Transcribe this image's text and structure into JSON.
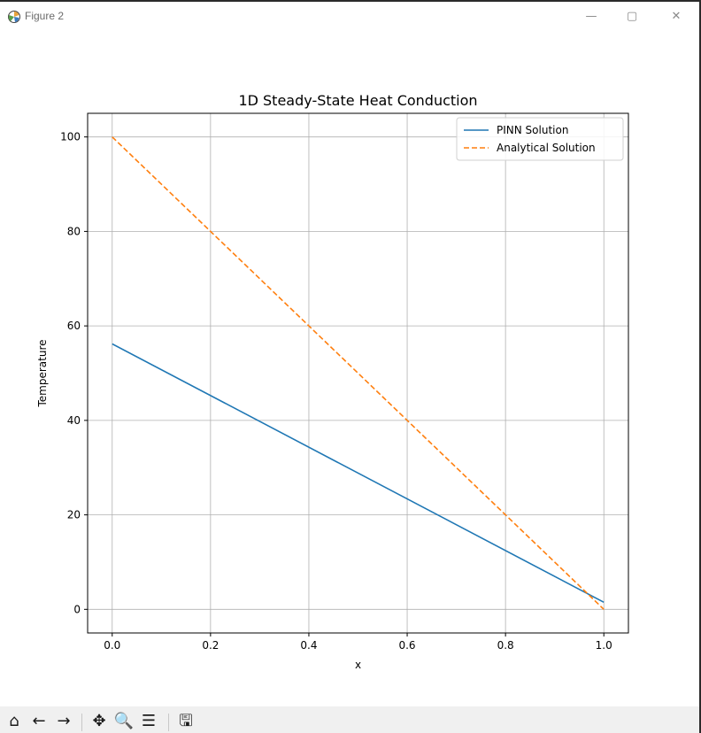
{
  "window": {
    "title": "Figure 2",
    "icon": "matplotlib-icon",
    "controls": {
      "minimize": "—",
      "maximize": "▢",
      "close": "✕"
    }
  },
  "toolbar": {
    "buttons": [
      {
        "icon": "home-icon",
        "glyph": "⌂"
      },
      {
        "icon": "back-arrow-icon",
        "glyph": "←"
      },
      {
        "icon": "forward-arrow-icon",
        "glyph": "→"
      },
      {
        "icon": "pan-icon",
        "glyph": "✥"
      },
      {
        "icon": "zoom-icon",
        "glyph": "🔍"
      },
      {
        "icon": "configure-subplots-icon",
        "glyph": "☰"
      },
      {
        "icon": "save-icon",
        "glyph": "🖫"
      }
    ]
  },
  "chart_data": {
    "type": "line",
    "title": "1D Steady-State Heat Conduction",
    "xlabel": "x",
    "ylabel": "Temperature",
    "xlim": [
      -0.05,
      1.05
    ],
    "ylim": [
      -5,
      105
    ],
    "xticks": [
      0.0,
      0.2,
      0.4,
      0.6,
      0.8,
      1.0
    ],
    "xtick_labels": [
      "0.0",
      "0.2",
      "0.4",
      "0.6",
      "0.8",
      "1.0"
    ],
    "yticks": [
      0,
      20,
      40,
      60,
      80,
      100
    ],
    "ytick_labels": [
      "0",
      "20",
      "40",
      "60",
      "80",
      "100"
    ],
    "grid": true,
    "legend_position": "top-right",
    "series": [
      {
        "name": "PINN Solution",
        "color": "#1f77b4",
        "style": "solid",
        "x": [
          0.0,
          1.0
        ],
        "y": [
          56.2,
          1.5
        ]
      },
      {
        "name": "Analytical Solution",
        "color": "#ff7f0e",
        "style": "dashed",
        "x": [
          0.0,
          1.0
        ],
        "y": [
          100.0,
          0.0
        ]
      }
    ]
  }
}
